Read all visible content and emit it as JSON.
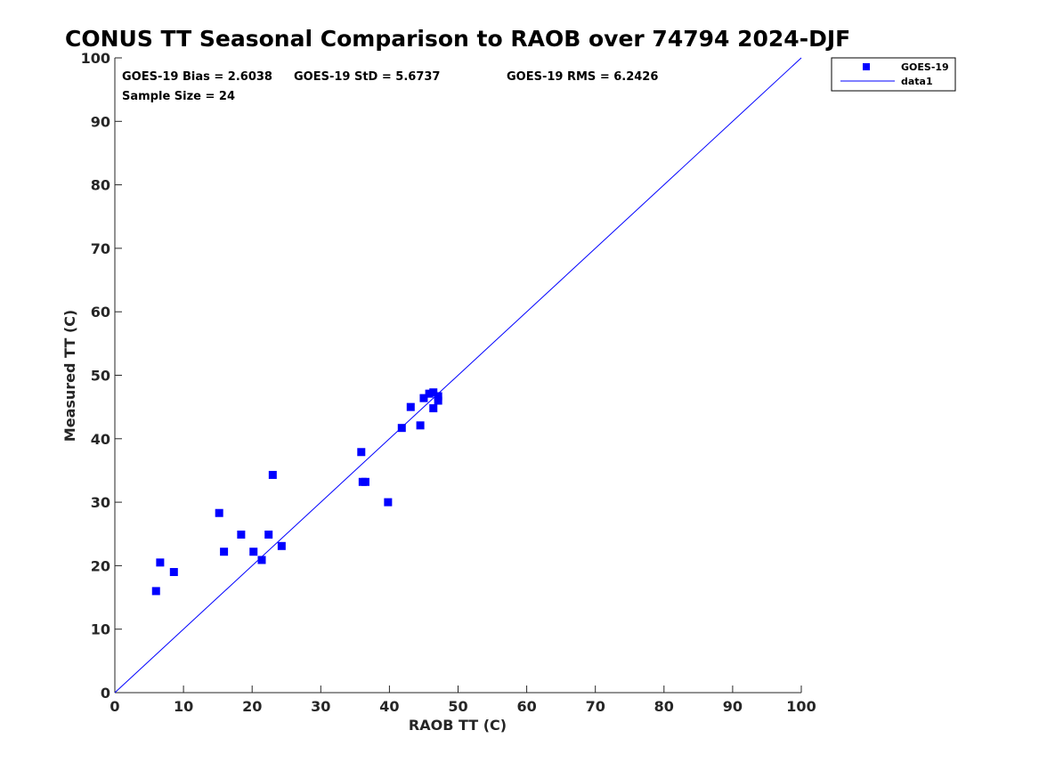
{
  "chart_data": {
    "type": "scatter",
    "title": "CONUS TT Seasonal Comparison to RAOB over 74794 2024-DJF",
    "xlabel": "RAOB TT (C)",
    "ylabel": "Measured TT (C)",
    "xlim": [
      0,
      100
    ],
    "ylim": [
      0,
      100
    ],
    "xticks": [
      "0",
      "10",
      "20",
      "30",
      "40",
      "50",
      "60",
      "70",
      "80",
      "90",
      "100"
    ],
    "yticks": [
      "0",
      "10",
      "20",
      "30",
      "40",
      "50",
      "60",
      "70",
      "80",
      "90",
      "100"
    ],
    "grid": false,
    "stats": {
      "bias": "GOES-19 Bias = 2.6038",
      "std": "GOES-19 StD = 5.6737",
      "rms": "GOES-19 RMS = 6.2426",
      "sample": "Sample Size = 24"
    },
    "legend": {
      "position": "top-right-outside",
      "entries": [
        "GOES-19",
        "data1"
      ]
    },
    "colors": {
      "series": "#0000ff",
      "line": "#0000ff",
      "axis": "#262626"
    },
    "series": [
      {
        "name": "GOES-19",
        "marker": "square",
        "points": [
          [
            6.0,
            16.0
          ],
          [
            6.6,
            20.5
          ],
          [
            8.6,
            19.0
          ],
          [
            15.2,
            28.3
          ],
          [
            15.9,
            22.2
          ],
          [
            18.4,
            24.9
          ],
          [
            20.2,
            22.2
          ],
          [
            21.4,
            20.9
          ],
          [
            22.4,
            24.9
          ],
          [
            23.0,
            34.3
          ],
          [
            24.3,
            23.1
          ],
          [
            35.9,
            37.9
          ],
          [
            36.1,
            33.2
          ],
          [
            36.5,
            33.2
          ],
          [
            39.8,
            30.0
          ],
          [
            41.8,
            41.7
          ],
          [
            43.1,
            45.0
          ],
          [
            44.5,
            42.1
          ],
          [
            45.0,
            46.4
          ],
          [
            45.8,
            47.1
          ],
          [
            46.4,
            47.3
          ],
          [
            46.4,
            44.8
          ],
          [
            47.1,
            46.7
          ],
          [
            47.1,
            46.0
          ]
        ]
      },
      {
        "name": "data1",
        "type": "line",
        "points": [
          [
            0,
            0
          ],
          [
            100,
            100
          ]
        ]
      }
    ]
  }
}
